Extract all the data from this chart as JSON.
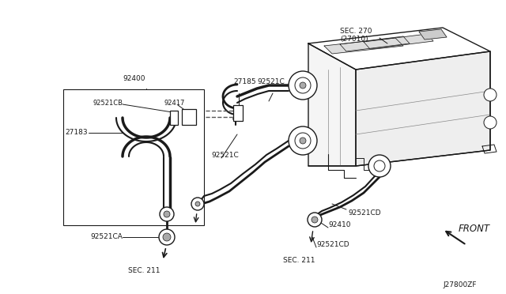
{
  "bg_color": "#ffffff",
  "line_color": "#1a1a1a",
  "diagram_code": "J27800ZF",
  "labels": {
    "sec270": "SEC. 270\n(27010)",
    "part92400": "92400",
    "part92521CB": "92521CB",
    "part92417": "92417",
    "part27183": "27183",
    "part27185": "27185",
    "part92521C_top": "92521C",
    "part92521C_mid": "92521C",
    "part92521CA": "92521CA",
    "part92521CD_right": "92521CD",
    "part92521CD_bot": "92521CD",
    "part98410": "92410",
    "sec211_left": "SEC. 211",
    "sec211_bot": "SEC. 211",
    "front": "FRONT"
  }
}
